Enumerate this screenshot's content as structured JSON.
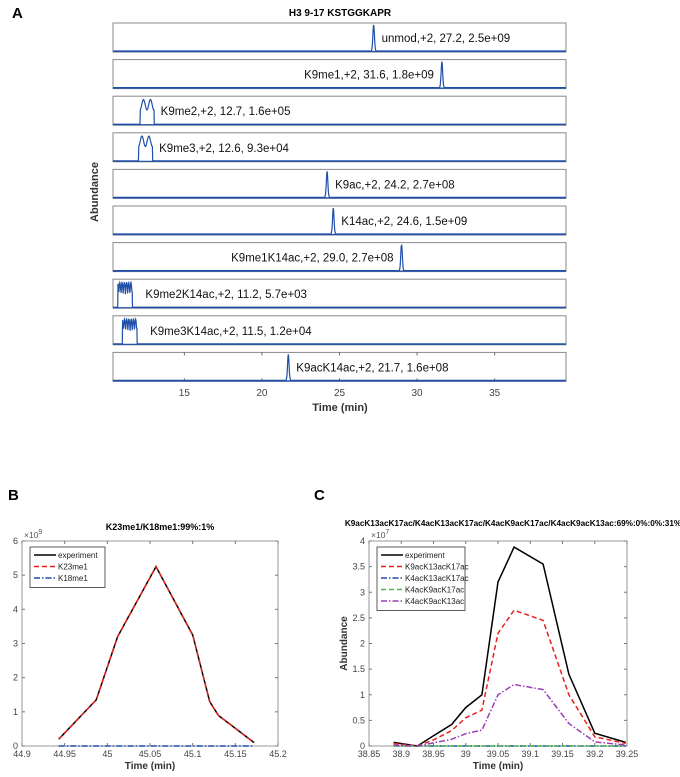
{
  "chart_data": [
    {
      "panel": "A",
      "type": "line",
      "title": "H3 9-17 KSTGGKAPR",
      "xlabel": "Time (min)",
      "ylabel": "Abundance",
      "xlim": [
        10.4,
        39.6
      ],
      "xticks": [
        15,
        20,
        25,
        30,
        35
      ],
      "line_color": "#1f4fa8",
      "traces": [
        {
          "label": "unmod,+2, 27.2, 2.5e+09",
          "rt": 27.2,
          "width": "narrow"
        },
        {
          "label": "K9me1,+2, 31.6, 1.8e+09",
          "rt": 31.6,
          "width": "narrow"
        },
        {
          "label": "K9me2,+2, 12.7, 1.6e+05",
          "rt": 12.7,
          "width": "broad"
        },
        {
          "label": "K9me3,+2, 12.6, 9.3e+04",
          "rt": 12.6,
          "width": "broad"
        },
        {
          "label": "K9ac,+2, 24.2, 2.7e+08",
          "rt": 24.2,
          "width": "narrow"
        },
        {
          "label": "K14ac,+2, 24.6, 1.5e+09",
          "rt": 24.6,
          "width": "narrow"
        },
        {
          "label": "K9me1K14ac,+2, 29.0, 2.7e+08",
          "rt": 29.0,
          "width": "narrow"
        },
        {
          "label": "K9me2K14ac,+2, 11.2, 5.7e+03",
          "rt": 11.2,
          "width": "spiky"
        },
        {
          "label": "K9me3K14ac,+2, 11.5, 1.2e+04",
          "rt": 11.5,
          "width": "spiky"
        },
        {
          "label": "K9acK14ac,+2, 21.7, 1.6e+08",
          "rt": 21.7,
          "width": "narrow"
        }
      ]
    },
    {
      "panel": "B",
      "type": "line",
      "title": "K23me1/K18me1:99%:1%",
      "xlabel": "Time (min)",
      "ylabel": "Abundance",
      "y_exponent": "×10",
      "y_exponent_power": "9",
      "xlim": [
        44.9,
        45.2
      ],
      "ylim": [
        0,
        6
      ],
      "xticks": [
        "44.9",
        "44.95",
        "45",
        "45.05",
        "45.1",
        "45.15",
        "45.2"
      ],
      "yticks": [
        "0",
        "1",
        "2",
        "3",
        "4",
        "5",
        "6"
      ],
      "legend_position": "top-left",
      "x": [
        44.943,
        44.987,
        45.012,
        45.057,
        45.1,
        45.12,
        45.13,
        45.172
      ],
      "series": [
        {
          "name": "experiment",
          "color": "#000000",
          "dash": "solid",
          "values": [
            0.2,
            1.35,
            3.2,
            5.25,
            3.25,
            1.3,
            0.9,
            0.1
          ]
        },
        {
          "name": "K23me1",
          "color": "#e8211c",
          "dash": "dashed",
          "values": [
            0.2,
            1.35,
            3.2,
            5.25,
            3.25,
            1.3,
            0.9,
            0.1
          ]
        },
        {
          "name": "K18me1",
          "color": "#1f4fa8",
          "dash": "dashdot",
          "values": [
            0,
            0,
            0,
            0,
            0,
            0,
            0,
            0
          ]
        }
      ]
    },
    {
      "panel": "C",
      "type": "line",
      "title": "K9acK13acK17ac/K4acK13acK17ac/K4acK9acK17ac/K4acK9acK13ac:69%:0%:0%:31%",
      "xlabel": "Time (min)",
      "ylabel": "Abundance",
      "y_exponent": "×10",
      "y_exponent_power": "7",
      "xlim": [
        38.85,
        39.25
      ],
      "ylim": [
        0,
        4
      ],
      "xticks": [
        "38.85",
        "38.9",
        "38.95",
        "39",
        "39.05",
        "39.1",
        "39.15",
        "39.2",
        "39.25"
      ],
      "yticks": [
        "0",
        "0.5",
        "1",
        "1.5",
        "2",
        "2.5",
        "3",
        "3.5",
        "4"
      ],
      "legend_position": "top-left",
      "x": [
        38.888,
        38.925,
        38.95,
        38.978,
        39.0,
        39.025,
        39.05,
        39.075,
        39.12,
        39.16,
        39.2,
        39.248
      ],
      "series": [
        {
          "name": "experiment",
          "color": "#000000",
          "dash": "solid",
          "values": [
            0.07,
            0,
            0.2,
            0.42,
            0.75,
            1.0,
            3.2,
            3.88,
            3.55,
            1.4,
            0.25,
            0.07
          ]
        },
        {
          "name": "K9acK13acK17ac",
          "color": "#e8211c",
          "dash": "dashed",
          "values": [
            0.05,
            0,
            0.12,
            0.3,
            0.55,
            0.7,
            2.2,
            2.65,
            2.45,
            1.0,
            0.18,
            0.05
          ]
        },
        {
          "name": "K4acK13acK17ac",
          "color": "#1f4fa8",
          "dash": "dashdot",
          "values": [
            0,
            0,
            0,
            0,
            0,
            0,
            0,
            0,
            0,
            0,
            0,
            0
          ]
        },
        {
          "name": "K4acK9acK17ac",
          "color": "#4db848",
          "dash": "dashed",
          "values": [
            0,
            0,
            0,
            0,
            0,
            0,
            0,
            0,
            0,
            0,
            0,
            0
          ]
        },
        {
          "name": "K4acK9acK13ac",
          "color": "#9b3fb5",
          "dash": "dashdot",
          "values": [
            0.02,
            0,
            0.06,
            0.13,
            0.24,
            0.31,
            1.0,
            1.2,
            1.1,
            0.44,
            0.08,
            0.02
          ]
        }
      ]
    }
  ]
}
